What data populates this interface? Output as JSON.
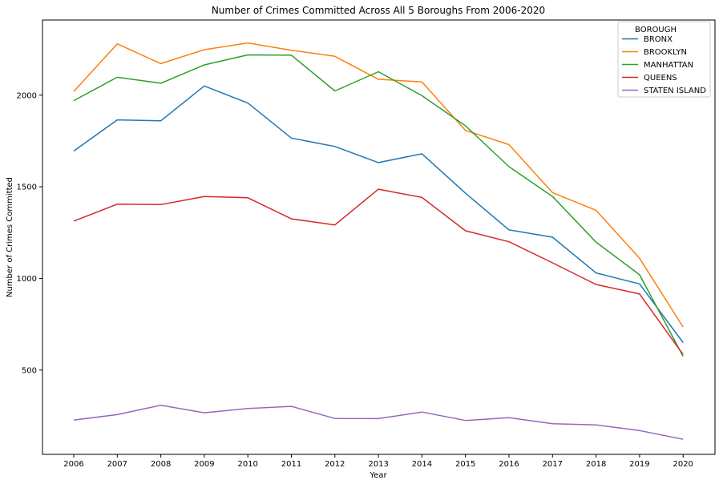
{
  "chart_data": {
    "type": "line",
    "title": "Number of Crimes Committed Across All 5 Boroughs From 2006-2020",
    "xlabel": "Year",
    "ylabel": "Number of Crimes Committed",
    "x": [
      2006,
      2007,
      2008,
      2009,
      2010,
      2011,
      2012,
      2013,
      2014,
      2015,
      2016,
      2017,
      2018,
      2019,
      2020
    ],
    "x_tick_labels": [
      "2006",
      "2007",
      "2008",
      "2009",
      "2010",
      "2011",
      "2012",
      "2013",
      "2014",
      "2015",
      "2016",
      "2017",
      "2018",
      "2019",
      "2020"
    ],
    "y_ticks": [
      500,
      1000,
      1500,
      2000
    ],
    "y_tick_labels": [
      "500",
      "1000",
      "1500",
      "2000"
    ],
    "ylim": [
      40,
      2410
    ],
    "grid": false,
    "legend": {
      "title": "BOROUGH",
      "placement": "top-right"
    },
    "series": [
      {
        "name": "BRONX",
        "color": "#1f77b4",
        "values": [
          1695,
          1865,
          1860,
          2050,
          1957,
          1766,
          1720,
          1632,
          1680,
          1465,
          1265,
          1225,
          1030,
          970,
          650
        ]
      },
      {
        "name": "BROOKLYN",
        "color": "#ff7f0e",
        "values": [
          2020,
          2280,
          2172,
          2248,
          2285,
          2245,
          2212,
          2087,
          2072,
          1808,
          1730,
          1468,
          1372,
          1110,
          735
        ]
      },
      {
        "name": "MANHATTAN",
        "color": "#2ca02c",
        "values": [
          1970,
          2098,
          2065,
          2165,
          2220,
          2218,
          2023,
          2128,
          1997,
          1833,
          1610,
          1447,
          1198,
          1020,
          575
        ]
      },
      {
        "name": "QUEENS",
        "color": "#d62728",
        "values": [
          1313,
          1405,
          1403,
          1447,
          1440,
          1325,
          1292,
          1487,
          1442,
          1260,
          1200,
          1085,
          967,
          915,
          585
        ]
      },
      {
        "name": "STATEN ISLAND",
        "color": "#9467bd",
        "values": [
          227,
          257,
          308,
          267,
          290,
          302,
          236,
          235,
          271,
          225,
          240,
          207,
          201,
          170,
          122
        ]
      }
    ]
  }
}
